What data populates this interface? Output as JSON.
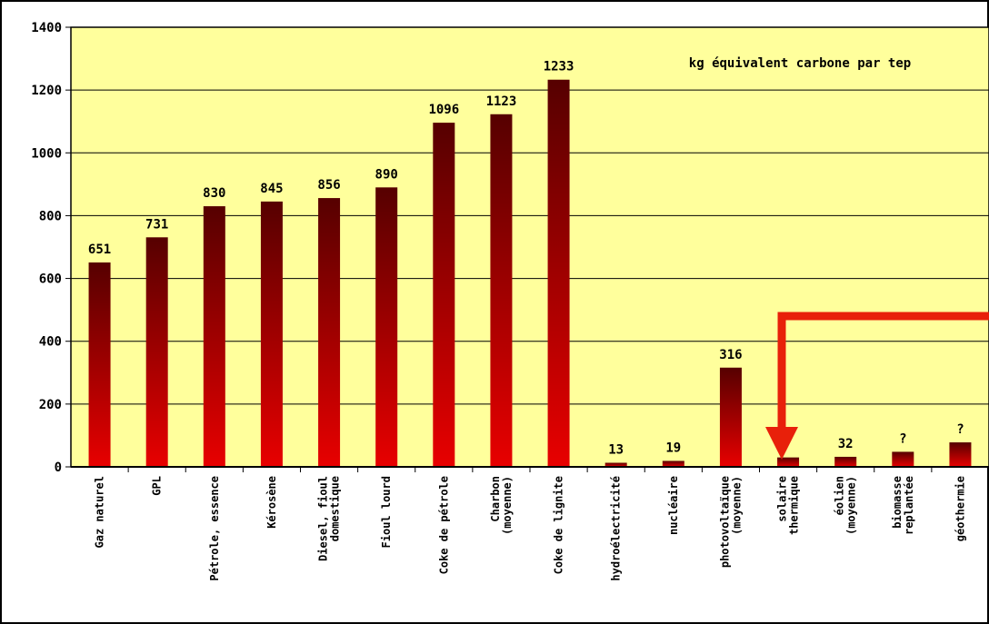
{
  "chart_data": {
    "type": "bar",
    "annotation": "kg équivalent carbone par tep",
    "categories": [
      "Gaz naturel",
      "GPL",
      "Pétrole, essence",
      "Kérosène",
      "Diesel, fioul\ndomestique",
      "Fioul lourd",
      "Coke de pétrole",
      "Charbon\n(moyenne)",
      "Coke de lignite",
      "hydroélectricité",
      "nucléaire",
      "photovoltaïque\n(moyenne)",
      "solaire\nthermique",
      "éolien\n(moyenne)",
      "biomasse\nreplantée",
      "géothermie"
    ],
    "values": [
      651,
      731,
      830,
      845,
      856,
      890,
      1096,
      1123,
      1233,
      13,
      19,
      316,
      30,
      32,
      48,
      78
    ],
    "value_labels": [
      "651",
      "731",
      "830",
      "845",
      "856",
      "890",
      "1096",
      "1123",
      "1233",
      "13",
      "19",
      "316",
      null,
      "32",
      "?",
      "?"
    ],
    "color_top": "#560000",
    "color_bottom": "#e80000",
    "background": "#ffff9c",
    "ylim": [
      0,
      1400
    ],
    "yticks": [
      0,
      200,
      400,
      600,
      800,
      1000,
      1200,
      1400
    ],
    "grid": true
  }
}
